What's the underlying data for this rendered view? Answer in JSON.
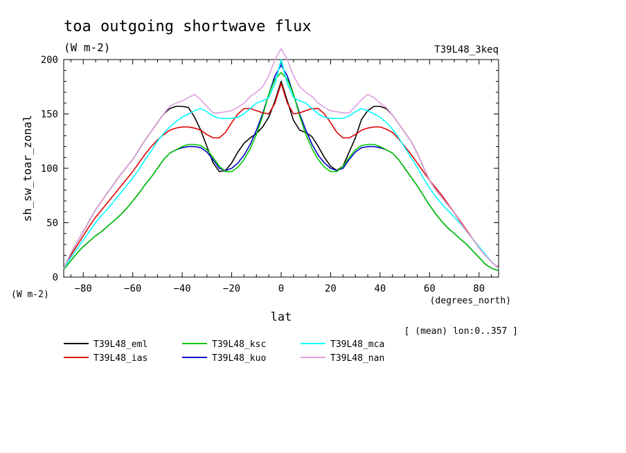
{
  "chart_data": {
    "type": "line",
    "title": "toa outgoing shortwave flux",
    "subtitle": "(W m-2)",
    "run_label": "T39L48_3keq",
    "ylabel": "sh_sw_toar_zonal",
    "yunits": "(W m-2)",
    "xlabel": "lat",
    "xunits": "(degrees_north)",
    "note": "[ (mean) lon:0..357 ]",
    "xlim": [
      -87.9,
      87.9
    ],
    "ylim": [
      0,
      200
    ],
    "xticks": [
      -80,
      -60,
      -40,
      -20,
      0,
      20,
      40,
      60,
      80
    ],
    "yticks": [
      0,
      50,
      100,
      150,
      200
    ],
    "x": [
      -87.9,
      -85,
      -82.5,
      -80,
      -77.5,
      -75,
      -72.5,
      -70,
      -67.5,
      -65,
      -62.5,
      -60,
      -57.5,
      -55,
      -52.5,
      -50,
      -47.5,
      -45,
      -42.5,
      -40,
      -37.5,
      -35,
      -32.5,
      -30,
      -27.5,
      -25,
      -22.5,
      -20,
      -17.5,
      -15,
      -12.5,
      -10,
      -7.5,
      -5,
      -2.5,
      0,
      2.5,
      5,
      7.5,
      10,
      12.5,
      15,
      17.5,
      20,
      22.5,
      25,
      27.5,
      30,
      32.5,
      35,
      37.5,
      40,
      42.5,
      45,
      47.5,
      50,
      52.5,
      55,
      57.5,
      60,
      62.5,
      65,
      67.5,
      70,
      72.5,
      75,
      77.5,
      80,
      82.5,
      85,
      87.9
    ],
    "series": [
      {
        "name": "T39L48_eml",
        "color": "#000000",
        "values": [
          8,
          22,
          32,
          42,
          52,
          62,
          70,
          78,
          86,
          94,
          101,
          108,
          117,
          126,
          134,
          142,
          150,
          155,
          157,
          157,
          156,
          147,
          135,
          120,
          105,
          97,
          98,
          105,
          115,
          123,
          128,
          132,
          138,
          147,
          162,
          180,
          162,
          144,
          135,
          133,
          129,
          120,
          110,
          102,
          98,
          102,
          115,
          128,
          145,
          153,
          157,
          157,
          155,
          149,
          141,
          133,
          125,
          114,
          101,
          89,
          80,
          73,
          66,
          59,
          50,
          42,
          35,
          27,
          20,
          14,
          8
        ]
      },
      {
        "name": "T39L48_kuo",
        "color": "#0000c8",
        "values": [
          7,
          15,
          22,
          28,
          33,
          38,
          42,
          47,
          52,
          57,
          63,
          70,
          77,
          85,
          92,
          100,
          108,
          114,
          117,
          119,
          120,
          120,
          119,
          115,
          108,
          100,
          98,
          100,
          105,
          112,
          122,
          135,
          150,
          168,
          185,
          195,
          185,
          168,
          150,
          135,
          122,
          112,
          105,
          100,
          98,
          100,
          108,
          115,
          119,
          120,
          120,
          119,
          117,
          114,
          108,
          100,
          92,
          84,
          75,
          66,
          58,
          51,
          45,
          40,
          35,
          30,
          24,
          18,
          12,
          8,
          6
        ]
      },
      {
        "name": "T39L48_ksc",
        "color": "#00c800",
        "values": [
          7,
          15,
          22,
          28,
          33,
          38,
          42,
          47,
          52,
          57,
          63,
          70,
          77,
          85,
          92,
          100,
          108,
          114,
          117,
          120,
          122,
          122,
          121,
          117,
          110,
          102,
          97,
          97,
          101,
          108,
          118,
          131,
          148,
          168,
          182,
          188,
          182,
          168,
          148,
          131,
          118,
          108,
          101,
          97,
          97,
          102,
          110,
          117,
          121,
          122,
          122,
          120,
          117,
          114,
          108,
          100,
          92,
          84,
          75,
          66,
          58,
          51,
          45,
          40,
          35,
          30,
          24,
          18,
          12,
          8,
          6
        ]
      },
      {
        "name": "T39L48_ias",
        "color": "#e00000",
        "values": [
          8,
          20,
          29,
          38,
          47,
          55,
          62,
          69,
          76,
          83,
          90,
          97,
          105,
          113,
          120,
          126,
          131,
          135,
          137,
          138,
          138,
          137,
          135,
          131,
          128,
          128,
          133,
          142,
          150,
          155,
          155,
          153,
          151,
          150,
          160,
          178,
          160,
          150,
          151,
          153,
          155,
          155,
          150,
          142,
          133,
          128,
          128,
          131,
          135,
          137,
          138,
          138,
          136,
          133,
          127,
          120,
          113,
          105,
          97,
          89,
          82,
          75,
          67,
          59,
          51,
          43,
          35,
          27,
          20,
          14,
          8
        ]
      },
      {
        "name": "T39L48_mca",
        "color": "#00ffff",
        "values": [
          8,
          18,
          26,
          34,
          42,
          50,
          57,
          63,
          70,
          77,
          84,
          91,
          99,
          108,
          116,
          125,
          132,
          138,
          143,
          147,
          150,
          153,
          155,
          152,
          148,
          146,
          146,
          146,
          147,
          150,
          155,
          160,
          162,
          165,
          178,
          200,
          178,
          165,
          162,
          160,
          155,
          150,
          147,
          146,
          146,
          146,
          148,
          152,
          155,
          153,
          150,
          147,
          142,
          136,
          128,
          119,
          110,
          101,
          91,
          82,
          74,
          67,
          61,
          55,
          49,
          42,
          35,
          28,
          21,
          14,
          8
        ]
      },
      {
        "name": "T39L48_nan",
        "color": "#dda0dd",
        "values": [
          8,
          22,
          32,
          42,
          52,
          62,
          70,
          78,
          86,
          94,
          101,
          108,
          117,
          126,
          134,
          142,
          150,
          157,
          160,
          162,
          165,
          168,
          163,
          157,
          151,
          151,
          152,
          153,
          156,
          160,
          166,
          170,
          175,
          185,
          200,
          210,
          200,
          185,
          175,
          170,
          166,
          160,
          156,
          153,
          152,
          151,
          151,
          157,
          163,
          168,
          165,
          160,
          156,
          149,
          141,
          133,
          125,
          114,
          101,
          89,
          80,
          73,
          66,
          59,
          50,
          42,
          35,
          27,
          20,
          14,
          8
        ]
      }
    ],
    "legend": {
      "placement": "bottom",
      "order": [
        "T39L48_eml",
        "T39L48_ias",
        "T39L48_ksc",
        "T39L48_kuo",
        "T39L48_mca",
        "T39L48_nan"
      ]
    },
    "grid": false
  }
}
